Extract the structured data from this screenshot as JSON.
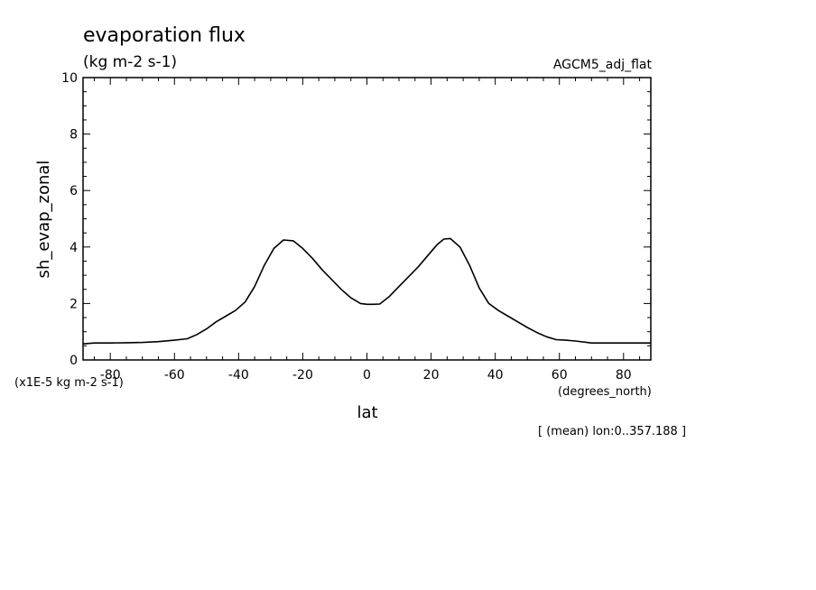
{
  "chart_data": {
    "type": "line",
    "title": "evaporation flux",
    "subtitle": "(kg m-2 s-1)",
    "dataset_label": "AGCM5_adj_flat",
    "xlabel": "lat",
    "xunits": "(degrees_north)",
    "ylabel": "sh_evap_zonal",
    "yscale_note": "(x1E-5 kg m-2 s-1)",
    "footnote": "[ (mean) lon:0..357.188 ]",
    "xlim": [
      -88.5,
      88.5
    ],
    "ylim": [
      0,
      10
    ],
    "x_ticks": [
      "-80",
      "-60",
      "-40",
      "-20",
      "0",
      "20",
      "40",
      "60",
      "80"
    ],
    "x_tick_values": [
      -80,
      -60,
      -40,
      -20,
      0,
      20,
      40,
      60,
      80
    ],
    "y_ticks": [
      "0",
      "2",
      "4",
      "6",
      "8",
      "10"
    ],
    "y_tick_values": [
      0,
      2,
      4,
      6,
      8,
      10
    ],
    "grid": false,
    "line_color": "#000000",
    "x": [
      -88.5,
      -85,
      -80,
      -75,
      -70,
      -65,
      -60,
      -56,
      -53,
      -50,
      -47,
      -44,
      -41,
      -38,
      -35,
      -32,
      -29,
      -26,
      -23,
      -20,
      -17,
      -14,
      -11,
      -8,
      -5,
      -2,
      0,
      2,
      4,
      7,
      10,
      13,
      16,
      19,
      22,
      24,
      26,
      29,
      32,
      35,
      38,
      41,
      44,
      47,
      50,
      53,
      56,
      59,
      62,
      65,
      70,
      75,
      80,
      85,
      88.5
    ],
    "values": [
      0.57,
      0.6,
      0.6,
      0.61,
      0.62,
      0.65,
      0.7,
      0.75,
      0.9,
      1.1,
      1.35,
      1.55,
      1.75,
      2.05,
      2.6,
      3.35,
      3.95,
      4.25,
      4.22,
      3.95,
      3.6,
      3.2,
      2.85,
      2.5,
      2.2,
      2.0,
      1.97,
      1.97,
      1.98,
      2.25,
      2.6,
      2.95,
      3.3,
      3.7,
      4.1,
      4.28,
      4.3,
      4.0,
      3.35,
      2.55,
      2.0,
      1.75,
      1.55,
      1.35,
      1.15,
      0.97,
      0.82,
      0.72,
      0.7,
      0.67,
      0.6,
      0.6,
      0.6,
      0.6,
      0.6
    ]
  }
}
